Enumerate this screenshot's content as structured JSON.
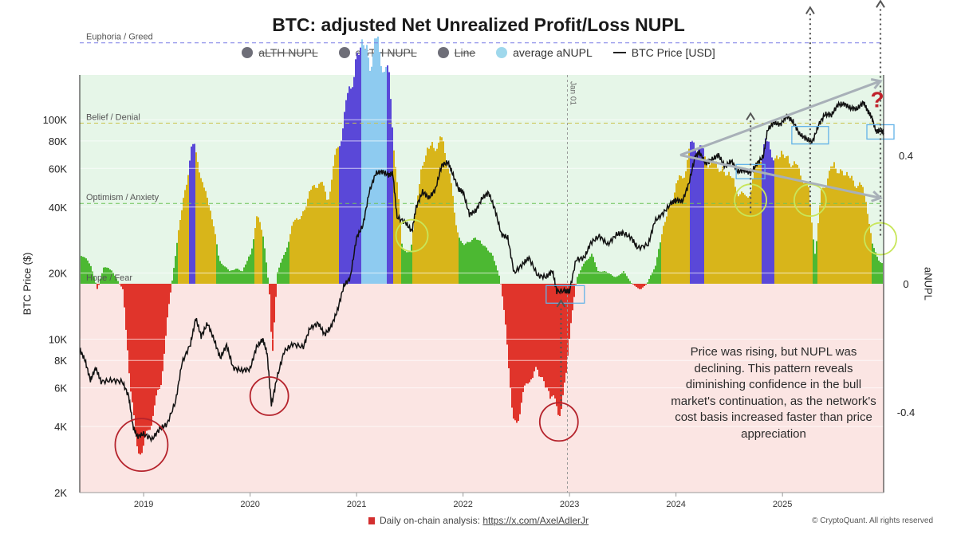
{
  "chart_data": {
    "type": "area",
    "title": "BTC: adjusted Net Unrealized Profit/Loss NUPL",
    "ylabel_left": "BTC Price ($)",
    "ylabel_right": "aNUPL",
    "left_axis": {
      "scale": "log",
      "range": [
        2000,
        160000
      ],
      "ticks": [
        "2K",
        "4K",
        "6K",
        "8K",
        "10K",
        "20K",
        "40K",
        "60K",
        "80K",
        "100K"
      ],
      "tick_values": [
        2000,
        4000,
        6000,
        8000,
        10000,
        20000,
        40000,
        60000,
        80000,
        100000
      ]
    },
    "right_axis": {
      "range": [
        -0.65,
        0.65
      ],
      "ticks": [
        "0.4",
        "0",
        "-0.4"
      ],
      "tick_values": [
        0.4,
        0,
        -0.4
      ]
    },
    "x_axis": {
      "range": [
        2018.4,
        2025.95
      ],
      "ticks": [
        "2019",
        "2020",
        "2021",
        "2022",
        "2023",
        "2024",
        "2025"
      ],
      "tick_values": [
        2019,
        2020,
        2021,
        2022,
        2023,
        2024,
        2025
      ]
    },
    "legend": [
      {
        "label": "aLTH NUPL",
        "color": "#6e6e78",
        "struck": true,
        "type": "dot"
      },
      {
        "label": "aSTH NUPL",
        "color": "#6e6e78",
        "struck": true,
        "type": "dot"
      },
      {
        "label": "Line",
        "color": "#6e6e78",
        "struck": true,
        "type": "dot"
      },
      {
        "label": "average aNUPL",
        "color": "#9fd8ec",
        "struck": false,
        "type": "dot"
      },
      {
        "label": "BTC Price [USD]",
        "color": "#222222",
        "struck": false,
        "type": "line"
      }
    ],
    "zones": [
      {
        "label": "Euphoria / Greed",
        "value": 0.75
      },
      {
        "label": "Belief / Denial",
        "value": 0.5
      },
      {
        "label": "Optimism / Anxiety",
        "value": 0.25
      },
      {
        "label": "Hope / Fear",
        "value": 0.0
      }
    ],
    "vline_label": "Jan 01",
    "vline_x": 2022.98,
    "colors": {
      "red": "#e0342b",
      "green": "#4cb832",
      "yellow": "#d8b51a",
      "blue": "#5a48d8",
      "lightblue": "#8ecbf0",
      "bg_pos": "#e6f6e8",
      "bg_neg": "#fbe5e3"
    },
    "anupl_series": [
      [
        2018.4,
        0.1,
        "g"
      ],
      [
        2018.5,
        0.06,
        "g"
      ],
      [
        2018.56,
        -0.02,
        "r"
      ],
      [
        2018.62,
        0.06,
        "g"
      ],
      [
        2018.7,
        0.04,
        "g"
      ],
      [
        2018.8,
        -0.02,
        "r"
      ],
      [
        2018.86,
        -0.3,
        "r"
      ],
      [
        2018.92,
        -0.52,
        "r"
      ],
      [
        2019.0,
        -0.55,
        "r"
      ],
      [
        2019.08,
        -0.42,
        "r"
      ],
      [
        2019.15,
        -0.35,
        "r"
      ],
      [
        2019.22,
        -0.1,
        "r"
      ],
      [
        2019.28,
        0.06,
        "g"
      ],
      [
        2019.34,
        0.22,
        "y"
      ],
      [
        2019.4,
        0.34,
        "y"
      ],
      [
        2019.45,
        0.45,
        "b"
      ],
      [
        2019.5,
        0.42,
        "y"
      ],
      [
        2019.56,
        0.3,
        "y"
      ],
      [
        2019.62,
        0.26,
        "y"
      ],
      [
        2019.7,
        0.08,
        "g"
      ],
      [
        2019.8,
        0.04,
        "g"
      ],
      [
        2019.86,
        0.05,
        "g"
      ],
      [
        2019.92,
        0.04,
        "g"
      ],
      [
        2020.0,
        0.1,
        "g"
      ],
      [
        2020.06,
        0.22,
        "y"
      ],
      [
        2020.12,
        0.16,
        "y"
      ],
      [
        2020.18,
        -0.05,
        "r"
      ],
      [
        2020.2,
        -0.25,
        "r"
      ],
      [
        2020.25,
        0.04,
        "g"
      ],
      [
        2020.32,
        0.1,
        "g"
      ],
      [
        2020.4,
        0.2,
        "y"
      ],
      [
        2020.48,
        0.22,
        "y"
      ],
      [
        2020.56,
        0.3,
        "y"
      ],
      [
        2020.64,
        0.34,
        "y"
      ],
      [
        2020.72,
        0.28,
        "y"
      ],
      [
        2020.8,
        0.42,
        "y"
      ],
      [
        2020.86,
        0.52,
        "b"
      ],
      [
        2020.92,
        0.62,
        "b"
      ],
      [
        2021.0,
        0.74,
        "b"
      ],
      [
        2021.06,
        0.78,
        "lb"
      ],
      [
        2021.12,
        0.72,
        "lb"
      ],
      [
        2021.18,
        0.78,
        "lb"
      ],
      [
        2021.24,
        0.74,
        "lb"
      ],
      [
        2021.3,
        0.66,
        "b"
      ],
      [
        2021.36,
        0.4,
        "y"
      ],
      [
        2021.42,
        0.12,
        "g"
      ],
      [
        2021.5,
        0.1,
        "g"
      ],
      [
        2021.56,
        0.28,
        "y"
      ],
      [
        2021.62,
        0.4,
        "y"
      ],
      [
        2021.68,
        0.44,
        "y"
      ],
      [
        2021.74,
        0.46,
        "y"
      ],
      [
        2021.8,
        0.46,
        "y"
      ],
      [
        2021.86,
        0.4,
        "y"
      ],
      [
        2021.92,
        0.2,
        "y"
      ],
      [
        2022.0,
        0.12,
        "g"
      ],
      [
        2022.08,
        0.15,
        "g"
      ],
      [
        2022.14,
        0.14,
        "g"
      ],
      [
        2022.2,
        0.12,
        "g"
      ],
      [
        2022.26,
        0.1,
        "g"
      ],
      [
        2022.34,
        0.02,
        "g"
      ],
      [
        2022.4,
        -0.15,
        "r"
      ],
      [
        2022.46,
        -0.48,
        "r"
      ],
      [
        2022.52,
        -0.42,
        "r"
      ],
      [
        2022.6,
        -0.32,
        "r"
      ],
      [
        2022.68,
        -0.28,
        "r"
      ],
      [
        2022.76,
        -0.32,
        "r"
      ],
      [
        2022.84,
        -0.38,
        "r"
      ],
      [
        2022.9,
        -0.42,
        "r"
      ],
      [
        2022.96,
        -0.32,
        "r"
      ],
      [
        2023.0,
        -0.14,
        "r"
      ],
      [
        2023.06,
        0.02,
        "g"
      ],
      [
        2023.12,
        0.06,
        "g"
      ],
      [
        2023.2,
        0.1,
        "g"
      ],
      [
        2023.26,
        0.04,
        "g"
      ],
      [
        2023.34,
        0.04,
        "g"
      ],
      [
        2023.42,
        0.02,
        "g"
      ],
      [
        2023.5,
        0.04,
        "g"
      ],
      [
        2023.58,
        0.0,
        "g"
      ],
      [
        2023.66,
        -0.02,
        "r"
      ],
      [
        2023.72,
        0.0,
        "g"
      ],
      [
        2023.8,
        0.06,
        "g"
      ],
      [
        2023.86,
        0.16,
        "y"
      ],
      [
        2023.92,
        0.24,
        "y"
      ],
      [
        2024.0,
        0.32,
        "y"
      ],
      [
        2024.08,
        0.38,
        "y"
      ],
      [
        2024.16,
        0.48,
        "b"
      ],
      [
        2024.22,
        0.44,
        "b"
      ],
      [
        2024.3,
        0.4,
        "y"
      ],
      [
        2024.38,
        0.38,
        "y"
      ],
      [
        2024.46,
        0.36,
        "y"
      ],
      [
        2024.52,
        0.34,
        "y"
      ],
      [
        2024.58,
        0.3,
        "y"
      ],
      [
        2024.64,
        0.28,
        "y"
      ],
      [
        2024.7,
        0.32,
        "y"
      ],
      [
        2024.76,
        0.4,
        "y"
      ],
      [
        2024.82,
        0.46,
        "b"
      ],
      [
        2024.88,
        0.44,
        "b"
      ],
      [
        2024.94,
        0.4,
        "y"
      ],
      [
        2025.0,
        0.42,
        "y"
      ],
      [
        2025.06,
        0.4,
        "y"
      ],
      [
        2025.12,
        0.38,
        "y"
      ],
      [
        2025.18,
        0.36,
        "y"
      ],
      [
        2025.24,
        0.3,
        "y"
      ],
      [
        2025.3,
        0.1,
        "g"
      ],
      [
        2025.36,
        0.3,
        "y"
      ],
      [
        2025.42,
        0.36,
        "y"
      ],
      [
        2025.48,
        0.38,
        "y"
      ],
      [
        2025.56,
        0.36,
        "y"
      ],
      [
        2025.64,
        0.34,
        "y"
      ],
      [
        2025.72,
        0.32,
        "y"
      ],
      [
        2025.78,
        0.28,
        "y"
      ],
      [
        2025.84,
        0.12,
        "g"
      ],
      [
        2025.9,
        0.08,
        "g"
      ],
      [
        2025.95,
        0.06,
        "g"
      ]
    ],
    "price_series": [
      [
        2018.4,
        9000
      ],
      [
        2018.45,
        8000
      ],
      [
        2018.5,
        6500
      ],
      [
        2018.55,
        7400
      ],
      [
        2018.6,
        6400
      ],
      [
        2018.7,
        6500
      ],
      [
        2018.8,
        6400
      ],
      [
        2018.86,
        5500
      ],
      [
        2018.9,
        4000
      ],
      [
        2018.94,
        3600
      ],
      [
        2019.0,
        3700
      ],
      [
        2019.08,
        3500
      ],
      [
        2019.15,
        3900
      ],
      [
        2019.22,
        4100
      ],
      [
        2019.3,
        5200
      ],
      [
        2019.36,
        7800
      ],
      [
        2019.44,
        9500
      ],
      [
        2019.49,
        12500
      ],
      [
        2019.54,
        10300
      ],
      [
        2019.6,
        11800
      ],
      [
        2019.66,
        10000
      ],
      [
        2019.72,
        8200
      ],
      [
        2019.78,
        9400
      ],
      [
        2019.84,
        7400
      ],
      [
        2019.92,
        7200
      ],
      [
        2020.0,
        7300
      ],
      [
        2020.06,
        9200
      ],
      [
        2020.12,
        10000
      ],
      [
        2020.16,
        8600
      ],
      [
        2020.2,
        5000
      ],
      [
        2020.25,
        6600
      ],
      [
        2020.32,
        8800
      ],
      [
        2020.4,
        9500
      ],
      [
        2020.5,
        9200
      ],
      [
        2020.56,
        11200
      ],
      [
        2020.64,
        11800
      ],
      [
        2020.7,
        10500
      ],
      [
        2020.76,
        11400
      ],
      [
        2020.82,
        13500
      ],
      [
        2020.88,
        17500
      ],
      [
        2020.94,
        19000
      ],
      [
        2021.0,
        29000
      ],
      [
        2021.06,
        33000
      ],
      [
        2021.12,
        47000
      ],
      [
        2021.18,
        57000
      ],
      [
        2021.24,
        58000
      ],
      [
        2021.3,
        56000
      ],
      [
        2021.34,
        57000
      ],
      [
        2021.38,
        36000
      ],
      [
        2021.46,
        34000
      ],
      [
        2021.52,
        31000
      ],
      [
        2021.56,
        40000
      ],
      [
        2021.62,
        47000
      ],
      [
        2021.68,
        44000
      ],
      [
        2021.74,
        48000
      ],
      [
        2021.8,
        62000
      ],
      [
        2021.86,
        64000
      ],
      [
        2021.9,
        57000
      ],
      [
        2021.96,
        48000
      ],
      [
        2022.0,
        47000
      ],
      [
        2022.06,
        37000
      ],
      [
        2022.12,
        38500
      ],
      [
        2022.18,
        44000
      ],
      [
        2022.24,
        46500
      ],
      [
        2022.3,
        39000
      ],
      [
        2022.36,
        30000
      ],
      [
        2022.42,
        29000
      ],
      [
        2022.48,
        20000
      ],
      [
        2022.56,
        22000
      ],
      [
        2022.62,
        23500
      ],
      [
        2022.7,
        19500
      ],
      [
        2022.78,
        19200
      ],
      [
        2022.84,
        20500
      ],
      [
        2022.88,
        16500
      ],
      [
        2022.96,
        16600
      ],
      [
        2023.0,
        16500
      ],
      [
        2023.06,
        23000
      ],
      [
        2023.14,
        23500
      ],
      [
        2023.2,
        27500
      ],
      [
        2023.28,
        29500
      ],
      [
        2023.36,
        27000
      ],
      [
        2023.44,
        30000
      ],
      [
        2023.5,
        30500
      ],
      [
        2023.58,
        29000
      ],
      [
        2023.64,
        26000
      ],
      [
        2023.74,
        27000
      ],
      [
        2023.8,
        34500
      ],
      [
        2023.88,
        37500
      ],
      [
        2023.96,
        42000
      ],
      [
        2024.0,
        43000
      ],
      [
        2024.06,
        42500
      ],
      [
        2024.12,
        51000
      ],
      [
        2024.18,
        68000
      ],
      [
        2024.22,
        71000
      ],
      [
        2024.28,
        63000
      ],
      [
        2024.34,
        66000
      ],
      [
        2024.4,
        69000
      ],
      [
        2024.46,
        61000
      ],
      [
        2024.52,
        65000
      ],
      [
        2024.58,
        58000
      ],
      [
        2024.64,
        59000
      ],
      [
        2024.7,
        57000
      ],
      [
        2024.76,
        63000
      ],
      [
        2024.82,
        68000
      ],
      [
        2024.86,
        90000
      ],
      [
        2024.92,
        97000
      ],
      [
        2024.98,
        95000
      ],
      [
        2025.04,
        104000
      ],
      [
        2025.1,
        98000
      ],
      [
        2025.16,
        86000
      ],
      [
        2025.22,
        82000
      ],
      [
        2025.28,
        79000
      ],
      [
        2025.34,
        95000
      ],
      [
        2025.4,
        106000
      ],
      [
        2025.46,
        105000
      ],
      [
        2025.52,
        117000
      ],
      [
        2025.58,
        118000
      ],
      [
        2025.64,
        113000
      ],
      [
        2025.7,
        112000
      ],
      [
        2025.76,
        120000
      ],
      [
        2025.8,
        110000
      ],
      [
        2025.84,
        102000
      ],
      [
        2025.88,
        88000
      ],
      [
        2025.92,
        90000
      ],
      [
        2025.95,
        87000
      ]
    ]
  },
  "annotation_text": "Price was rising, but NUPL was declining. This pattern reveals diminishing confidence in the bull market's continuation, as the network's cost basis increased faster than price appreciation",
  "footer": {
    "text": "Daily on-chain analysis:",
    "link": "https://x.com/AxelAdlerJr"
  },
  "copyright": "© CryptoQuant. All rights reserved",
  "question_mark": "?"
}
